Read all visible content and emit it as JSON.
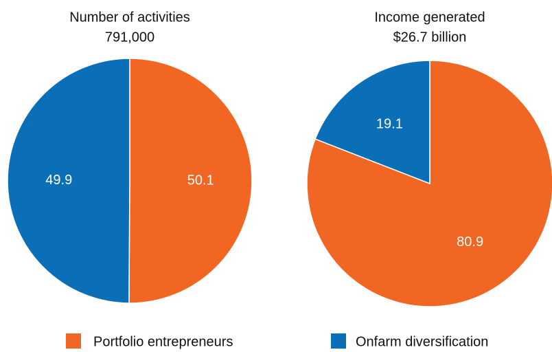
{
  "chart_data": [
    {
      "type": "pie",
      "title": "Number of activities",
      "subtitle": "791,000",
      "categories": [
        "Portfolio entrepreneurs",
        "Onfarm diversification"
      ],
      "values": [
        50.1,
        49.9
      ],
      "colors": [
        "#f26624",
        "#0a6fb7"
      ]
    },
    {
      "type": "pie",
      "title": "Income generated",
      "subtitle": "$26.7 billion",
      "categories": [
        "Portfolio entrepreneurs",
        "Onfarm diversification"
      ],
      "values": [
        80.9,
        19.1
      ],
      "colors": [
        "#f26624",
        "#0a6fb7"
      ]
    }
  ]
}
